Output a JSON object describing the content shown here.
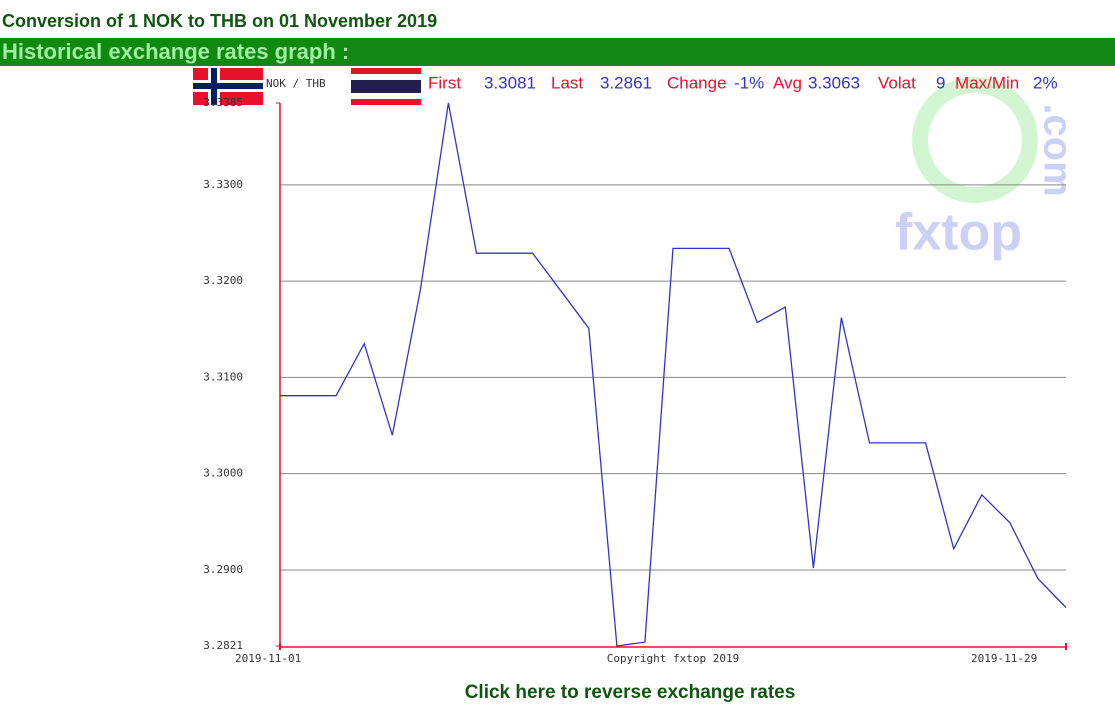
{
  "header": {
    "title": "Conversion of 1 NOK to THB on 01 November 2019",
    "subtitle": "Historical exchange rates graph :"
  },
  "chart_data": {
    "type": "line",
    "pair": "NOK / THB",
    "stats": [
      {
        "label": "First",
        "value": "3.3081"
      },
      {
        "label": "Last",
        "value": "3.2861"
      },
      {
        "label": "Change",
        "value": "-1%"
      },
      {
        "label": "Avg",
        "value": "3.3063"
      },
      {
        "label": "Volat",
        "value": "9"
      },
      {
        "label": "Max/Min",
        "value": "2%"
      }
    ],
    "x": [
      "2019-11-01",
      "2019-11-02",
      "2019-11-03",
      "2019-11-04",
      "2019-11-05",
      "2019-11-06",
      "2019-11-07",
      "2019-11-08",
      "2019-11-09",
      "2019-11-10",
      "2019-11-11",
      "2019-11-12",
      "2019-11-13",
      "2019-11-14",
      "2019-11-15",
      "2019-11-16",
      "2019-11-17",
      "2019-11-18",
      "2019-11-19",
      "2019-11-20",
      "2019-11-21",
      "2019-11-22",
      "2019-11-23",
      "2019-11-24",
      "2019-11-25",
      "2019-11-26",
      "2019-11-27",
      "2019-11-28",
      "2019-11-29"
    ],
    "series": [
      {
        "name": "NOK / THB",
        "color": "#3333cc",
        "values": [
          3.3081,
          3.3081,
          3.3081,
          3.3135,
          3.304,
          3.3191,
          3.3385,
          3.3229,
          3.3229,
          3.3229,
          3.319,
          3.3151,
          3.2821,
          3.2825,
          3.3234,
          3.3234,
          3.3234,
          3.3157,
          3.3173,
          3.2902,
          3.3162,
          3.3032,
          3.3032,
          3.3032,
          3.2922,
          3.2978,
          3.2949,
          3.2891,
          3.2861
        ]
      }
    ],
    "xticks": [
      "2019-11-01",
      "2019-11-29"
    ],
    "ylim": [
      3.2821,
      3.3385
    ],
    "yticks": [
      3.2821,
      {
        "value": 3.29,
        "label": "3.2900"
      },
      {
        "value": 3.3,
        "label": "3.3000"
      },
      {
        "value": 3.31,
        "label": "3.3100"
      },
      {
        "value": 3.32,
        "label": "3.3200"
      },
      {
        "value": 3.33,
        "label": "3.3300"
      },
      3.3385
    ],
    "grid": true,
    "copyright": "Copyright fxtop 2019",
    "watermark": [
      "fxtop",
      ".com"
    ]
  },
  "footer": {
    "link": "Click here to reverse exchange rates"
  }
}
